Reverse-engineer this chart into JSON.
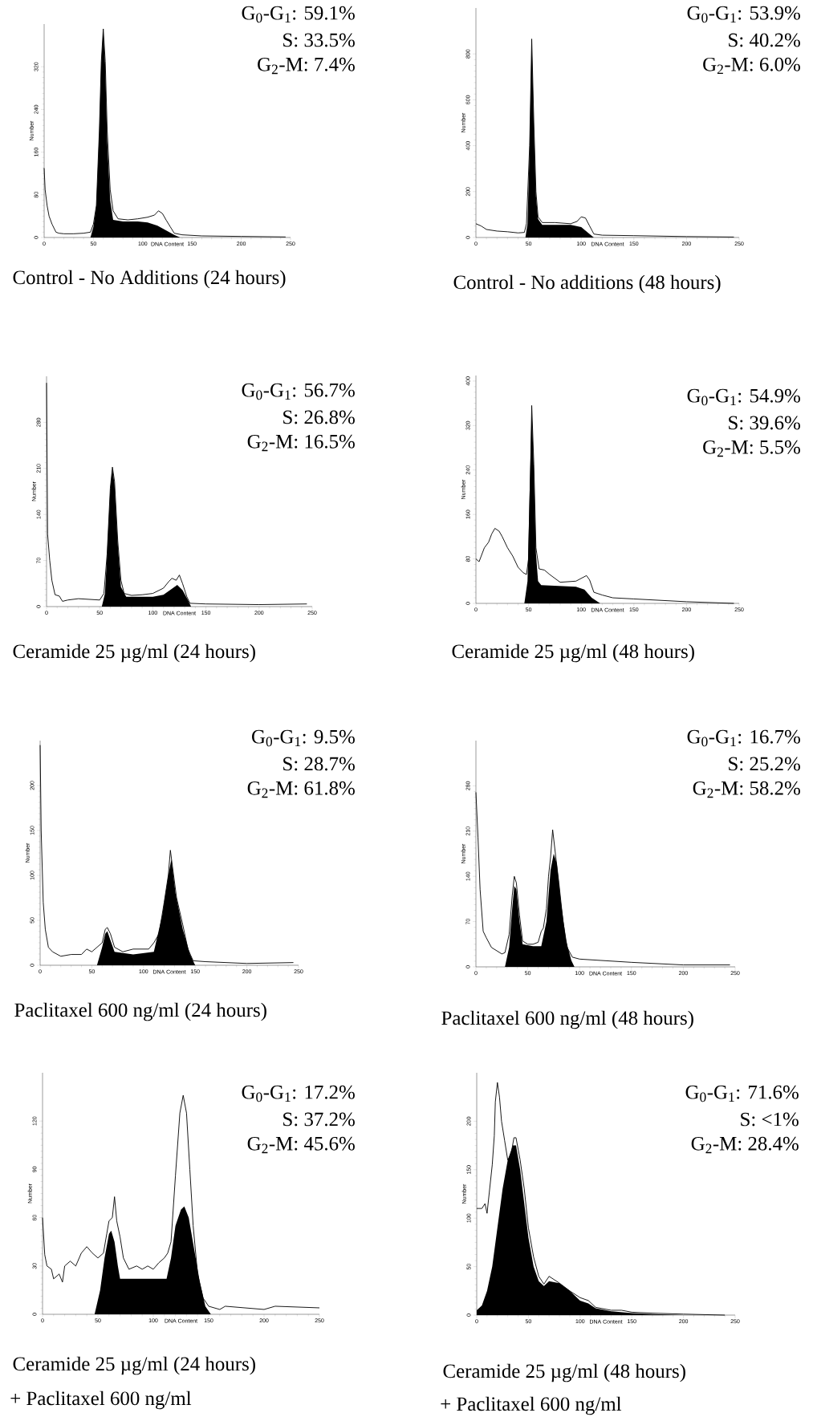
{
  "chart_data": [
    {
      "type": "line",
      "title": "Control - No Additions (24 hours)",
      "xlabel": "DNA Content",
      "ylabel": "Number",
      "annotations": [
        "G$_{0}$-G$_{1}$: 59.1%",
        "S: 33.5%",
        "G$_{2}$-M: 7.4%"
      ],
      "xlim": [
        0,
        250
      ],
      "ylim": [
        0,
        400
      ],
      "xticks": [
        0,
        50,
        100,
        150,
        200,
        250
      ],
      "yticks": [
        0,
        80,
        160,
        240,
        320
      ],
      "series": [
        {
          "type": "area",
          "color": "#000000",
          "x": [
            47,
            50,
            53,
            56,
            58,
            60,
            62,
            64,
            67,
            70,
            80,
            95,
            105,
            115,
            125,
            132,
            138
          ],
          "values": [
            0,
            20,
            60,
            200,
            330,
            388,
            320,
            180,
            70,
            33,
            30,
            30,
            28,
            22,
            12,
            5,
            0
          ]
        },
        {
          "type": "line",
          "color": "#000000",
          "x": [
            0,
            1,
            3,
            5,
            8,
            12,
            15,
            20,
            30,
            40,
            47,
            50,
            53,
            56,
            58,
            60,
            62,
            64,
            67,
            70,
            75,
            85,
            95,
            105,
            112,
            116,
            120,
            124,
            128,
            132,
            140,
            160,
            200,
            245
          ],
          "values": [
            130,
            90,
            60,
            40,
            25,
            10,
            8,
            7,
            7,
            8,
            10,
            25,
            60,
            200,
            330,
            391,
            330,
            200,
            90,
            50,
            35,
            33,
            35,
            38,
            42,
            50,
            45,
            32,
            20,
            8,
            5,
            3,
            2,
            1
          ]
        }
      ]
    },
    {
      "type": "line",
      "title": "Control - No additions (48 hours)",
      "xlabel": "DNA Content",
      "ylabel": "Number",
      "annotations": [
        "G$_{0}$-G$_{1}$: 53.9%",
        "S: 40.2%",
        "G$_{2}$-M: 6.0%"
      ],
      "xlim": [
        0,
        250
      ],
      "ylim": [
        0,
        1000
      ],
      "xticks": [
        0,
        50,
        100,
        150,
        200,
        250
      ],
      "yticks": [
        0,
        200,
        400,
        600,
        800
      ],
      "series": [
        {
          "type": "area",
          "color": "#000000",
          "x": [
            47,
            49,
            51,
            53,
            55,
            57,
            59,
            63,
            90,
            100,
            108,
            112
          ],
          "values": [
            0,
            60,
            400,
            860,
            480,
            180,
            80,
            55,
            55,
            45,
            15,
            0
          ]
        },
        {
          "type": "line",
          "color": "#000000",
          "x": [
            0,
            5,
            10,
            20,
            30,
            40,
            46,
            48,
            51,
            53,
            55,
            57,
            59,
            63,
            75,
            90,
            96,
            100,
            104,
            108,
            112,
            120,
            150,
            200,
            245
          ],
          "values": [
            60,
            50,
            35,
            28,
            25,
            20,
            22,
            60,
            400,
            865,
            500,
            200,
            90,
            65,
            65,
            60,
            70,
            90,
            85,
            50,
            15,
            10,
            8,
            4,
            2
          ]
        }
      ]
    },
    {
      "type": "line",
      "title": "Ceramide 25 µg/ml (24 hours)",
      "xlabel": "DNA Content",
      "ylabel": "Number",
      "annotations": [
        "G$_{0}$-G$_{1}$: 56.7%",
        "S: 26.8%",
        "G$_{2}$-M: 16.5%"
      ],
      "xlim": [
        0,
        250
      ],
      "ylim": [
        0,
        350
      ],
      "xticks": [
        0,
        50,
        100,
        150,
        200,
        250
      ],
      "yticks": [
        0,
        70,
        140,
        210,
        280
      ],
      "series": [
        {
          "type": "area",
          "color": "#000000",
          "x": [
            52,
            55,
            57,
            60,
            62,
            64,
            67,
            70,
            75,
            100,
            110,
            118,
            123,
            128,
            133,
            136
          ],
          "values": [
            0,
            20,
            80,
            180,
            210,
            185,
            95,
            30,
            15,
            15,
            18,
            27,
            33,
            25,
            10,
            0
          ]
        },
        {
          "type": "line",
          "color": "#000000",
          "x": [
            0,
            1,
            3,
            5,
            8,
            12,
            15,
            20,
            30,
            40,
            50,
            54,
            57,
            60,
            62,
            64,
            67,
            70,
            73,
            80,
            90,
            100,
            110,
            115,
            118,
            122,
            125,
            128,
            132,
            135,
            150,
            200,
            245
          ],
          "values": [
            340,
            110,
            70,
            40,
            18,
            16,
            8,
            10,
            12,
            11,
            10,
            20,
            80,
            180,
            212,
            190,
            100,
            40,
            20,
            17,
            18,
            20,
            28,
            38,
            43,
            40,
            48,
            35,
            15,
            5,
            4,
            3,
            4
          ]
        }
      ]
    },
    {
      "type": "line",
      "title": "Ceramide 25 µg/ml (48 hours)",
      "xlabel": "DNA Content",
      "ylabel": "Number",
      "annotations": [
        "G$_{0}$-G$_{1}$: 54.9%",
        "S: 39.6%",
        "G$_{2}$-M: 5.5%"
      ],
      "xlim": [
        0,
        250
      ],
      "ylim": [
        0,
        410
      ],
      "xticks": [
        0,
        50,
        100,
        150,
        200,
        250
      ],
      "yticks": [
        0,
        80,
        160,
        240,
        320,
        400
      ],
      "series": [
        {
          "type": "area",
          "color": "#000000",
          "x": [
            46,
            49,
            51,
            53,
            55,
            57,
            59,
            62,
            95,
            103,
            110,
            118
          ],
          "values": [
            0,
            40,
            200,
            350,
            240,
            90,
            40,
            33,
            30,
            25,
            10,
            0
          ]
        },
        {
          "type": "line",
          "color": "#000000",
          "x": [
            0,
            3,
            5,
            8,
            12,
            15,
            18,
            22,
            25,
            30,
            35,
            40,
            45,
            48,
            50,
            52,
            53,
            55,
            57,
            60,
            65,
            70,
            80,
            95,
            105,
            108,
            112,
            120,
            130,
            150,
            200,
            245
          ],
          "values": [
            80,
            75,
            85,
            100,
            110,
            125,
            135,
            130,
            120,
            100,
            85,
            65,
            55,
            52,
            80,
            250,
            356,
            250,
            100,
            62,
            60,
            52,
            38,
            40,
            50,
            42,
            20,
            15,
            10,
            8,
            3,
            0
          ]
        }
      ]
    },
    {
      "type": "line",
      "title": "Paclitaxel 600 ng/ml (24 hours)",
      "xlabel": "DNA Content",
      "ylabel": "Number",
      "annotations": [
        "G$_{0}$-G$_{1}$: 9.5%",
        "S: 28.7%",
        "G$_{2}$-M: 61.8%"
      ],
      "xlim": [
        0,
        250
      ],
      "ylim": [
        0,
        250
      ],
      "xticks": [
        0,
        50,
        100,
        150,
        200,
        250
      ],
      "yticks": [
        0,
        50,
        100,
        150,
        200
      ],
      "series": [
        {
          "type": "area",
          "color": "#000000",
          "x": [
            55,
            60,
            63,
            65,
            68,
            72,
            90,
            110,
            118,
            124,
            127,
            131,
            138,
            145,
            150
          ],
          "values": [
            0,
            20,
            35,
            38,
            28,
            15,
            12,
            15,
            55,
            100,
            118,
            80,
            40,
            12,
            0
          ]
        },
        {
          "type": "line",
          "color": "#000000",
          "x": [
            0,
            1,
            3,
            5,
            8,
            12,
            20,
            30,
            40,
            45,
            50,
            55,
            60,
            63,
            65,
            68,
            72,
            80,
            90,
            100,
            105,
            110,
            115,
            120,
            124,
            126,
            128,
            132,
            138,
            143,
            148,
            160,
            200,
            245
          ],
          "values": [
            245,
            150,
            70,
            40,
            20,
            15,
            10,
            12,
            12,
            18,
            15,
            20,
            25,
            40,
            42,
            35,
            20,
            15,
            18,
            18,
            18,
            25,
            35,
            70,
            100,
            128,
            110,
            75,
            45,
            18,
            5,
            4,
            2,
            3
          ]
        }
      ]
    },
    {
      "type": "line",
      "title": "Paclitaxel 600 ng/ml (48 hours)",
      "xlabel": "DNA Content",
      "ylabel": "Number",
      "annotations": [
        "G$_{0}$-G$_{1}$: 16.7%",
        "S: 25.2%",
        "G$_{2}$-M: 58.2%"
      ],
      "xlim": [
        0,
        250
      ],
      "ylim": [
        0,
        350
      ],
      "xticks": [
        0,
        50,
        100,
        150,
        200,
        250
      ],
      "yticks": [
        0,
        70,
        140,
        210,
        280
      ],
      "series": [
        {
          "type": "area",
          "color": "#000000",
          "x": [
            28,
            32,
            35,
            37,
            39,
            42,
            45,
            55,
            63,
            68,
            72,
            75,
            78,
            82,
            87,
            92,
            95
          ],
          "values": [
            0,
            30,
            90,
            125,
            120,
            70,
            35,
            32,
            32,
            70,
            150,
            175,
            160,
            100,
            40,
            10,
            0
          ]
        },
        {
          "type": "line",
          "color": "#000000",
          "x": [
            0,
            2,
            4,
            7,
            10,
            15,
            20,
            25,
            28,
            32,
            35,
            37,
            39,
            42,
            45,
            50,
            55,
            60,
            63,
            65,
            68,
            70,
            72,
            74,
            77,
            80,
            84,
            88,
            93,
            100,
            120,
            150,
            200,
            245
          ],
          "values": [
            270,
            200,
            120,
            55,
            45,
            30,
            25,
            20,
            22,
            50,
            110,
            140,
            130,
            80,
            40,
            35,
            35,
            38,
            55,
            60,
            90,
            140,
            170,
            212,
            170,
            130,
            70,
            30,
            15,
            12,
            10,
            7,
            3,
            3
          ]
        }
      ]
    },
    {
      "type": "line",
      "title": "Ceramide 25 µg/ml (24 hours)",
      "subtitle": "+ Paclitaxel 600 ng/ml",
      "xlabel": "DNA Content",
      "ylabel": "Number",
      "annotations": [
        "G$_{0}$-G$_{1}$: 17.2%",
        "S: 37.2%",
        "G$_{2}$-M: 45.6%"
      ],
      "xlim": [
        0,
        250
      ],
      "ylim": [
        0,
        150
      ],
      "xticks": [
        0,
        50,
        100,
        150,
        200,
        250
      ],
      "yticks": [
        0,
        30,
        60,
        90,
        120
      ],
      "series": [
        {
          "type": "area",
          "color": "#000000",
          "x": [
            47,
            52,
            56,
            60,
            62,
            65,
            68,
            70,
            112,
            116,
            120,
            125,
            128,
            132,
            137,
            142,
            147,
            152
          ],
          "values": [
            0,
            15,
            35,
            50,
            52,
            45,
            30,
            22,
            22,
            35,
            55,
            65,
            67,
            60,
            40,
            20,
            5,
            0
          ]
        },
        {
          "type": "line",
          "color": "#000000",
          "x": [
            0,
            2,
            4,
            8,
            10,
            15,
            18,
            20,
            25,
            30,
            35,
            40,
            45,
            50,
            55,
            58,
            60,
            63,
            65,
            67,
            70,
            73,
            78,
            85,
            90,
            95,
            100,
            105,
            110,
            113,
            116,
            120,
            124,
            127,
            130,
            133,
            136,
            140,
            145,
            150,
            160,
            165,
            200,
            210,
            250
          ],
          "values": [
            60,
            37,
            30,
            28,
            22,
            25,
            20,
            30,
            33,
            30,
            38,
            42,
            38,
            35,
            38,
            50,
            58,
            60,
            73,
            58,
            48,
            35,
            28,
            30,
            28,
            30,
            28,
            32,
            35,
            38,
            45,
            86,
            125,
            136,
            125,
            90,
            55,
            25,
            10,
            5,
            3,
            5,
            3,
            5,
            4
          ]
        }
      ]
    },
    {
      "type": "line",
      "title": "Ceramide 25 µg/ml (48 hours)",
      "subtitle": "+ Paclitaxel 600 ng/ml",
      "xlabel": "DNA Content",
      "ylabel": "Number",
      "annotations": [
        "G$_{0}$-G$_{1}$: 71.6%",
        "S: <1%",
        "G$_{2}$-M: 28.4%"
      ],
      "xlim": [
        0,
        250
      ],
      "ylim": [
        0,
        250
      ],
      "xticks": [
        0,
        50,
        100,
        150,
        200,
        250
      ],
      "yticks": [
        0,
        50,
        100,
        150,
        200
      ],
      "series": [
        {
          "type": "area",
          "color": "#000000",
          "x": [
            0,
            5,
            10,
            15,
            20,
            25,
            30,
            35,
            38,
            42,
            46,
            50,
            55,
            60,
            65,
            70,
            80,
            90,
            100,
            108,
            115,
            130,
            150,
            170,
            200
          ],
          "values": [
            5,
            10,
            25,
            50,
            90,
            130,
            160,
            175,
            175,
            150,
            115,
            80,
            50,
            35,
            30,
            35,
            33,
            25,
            15,
            12,
            7,
            4,
            2,
            1,
            0
          ]
        },
        {
          "type": "line",
          "color": "#000000",
          "x": [
            0,
            5,
            8,
            10,
            12,
            15,
            17,
            18,
            20,
            22,
            24,
            27,
            30,
            33,
            36,
            38,
            42,
            46,
            50,
            55,
            60,
            65,
            70,
            80,
            90,
            100,
            108,
            115,
            130,
            140,
            150,
            170,
            200,
            240
          ],
          "values": [
            110,
            110,
            115,
            105,
            125,
            155,
            185,
            220,
            240,
            225,
            200,
            180,
            160,
            165,
            183,
            183,
            160,
            130,
            90,
            60,
            40,
            32,
            40,
            33,
            25,
            18,
            15,
            8,
            5,
            5,
            3,
            2,
            1,
            0
          ]
        }
      ]
    }
  ]
}
